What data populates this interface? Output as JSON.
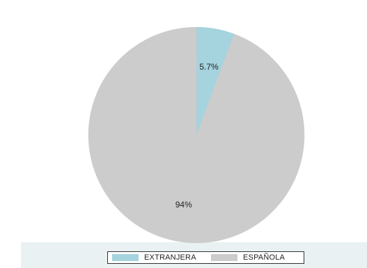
{
  "chart_data": {
    "type": "pie",
    "title": "",
    "slices": [
      {
        "label": "EXTRANJERA",
        "value": 5.7,
        "display": "5.7%",
        "color": "#a5d3de"
      },
      {
        "label": "ESPAÑOLA",
        "value": 94.3,
        "display": "94%",
        "color": "#cccccc"
      }
    ],
    "start_angle_deg": 0,
    "direction": "clockwise",
    "legend_position": "bottom"
  },
  "legend": {
    "items": [
      {
        "label": "EXTRANJERA",
        "color": "#a5d3de"
      },
      {
        "label": "ESPAÑOLA",
        "color": "#cccccc"
      }
    ]
  }
}
